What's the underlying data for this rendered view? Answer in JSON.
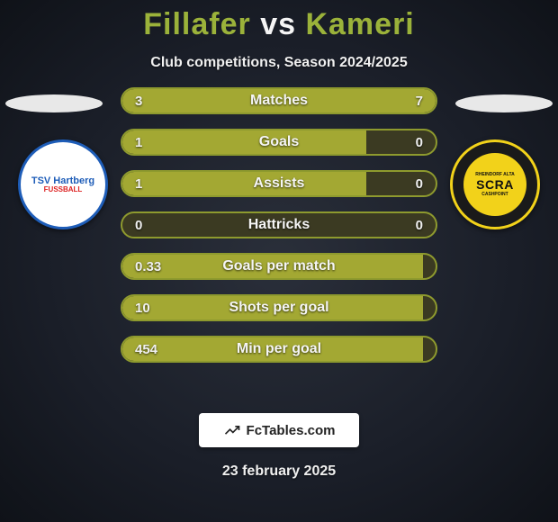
{
  "title": {
    "player1": "Fillafer",
    "vs": "vs",
    "player2": "Kameri"
  },
  "subtitle": "Club competitions, Season 2024/2025",
  "team_left": {
    "badge_main": "TSV Hartberg",
    "badge_sub": "FUSSBALL"
  },
  "team_right": {
    "badge_main": "SCRA",
    "badge_top": "RHEINDORF ALTA",
    "badge_sub": "CASHPOINT"
  },
  "rows": [
    {
      "label": "Matches",
      "left": "3",
      "right": "7",
      "left_pct": 30,
      "right_pct": 70
    },
    {
      "label": "Goals",
      "left": "1",
      "right": "0",
      "left_pct": 78,
      "right_pct": 0
    },
    {
      "label": "Assists",
      "left": "1",
      "right": "0",
      "left_pct": 78,
      "right_pct": 0
    },
    {
      "label": "Hattricks",
      "left": "0",
      "right": "0",
      "left_pct": 0,
      "right_pct": 0
    },
    {
      "label": "Goals per match",
      "left": "0.33",
      "right": "",
      "left_pct": 96,
      "right_pct": 0
    },
    {
      "label": "Shots per goal",
      "left": "10",
      "right": "",
      "left_pct": 96,
      "right_pct": 0
    },
    {
      "label": "Min per goal",
      "left": "454",
      "right": "",
      "left_pct": 96,
      "right_pct": 0
    }
  ],
  "colors": {
    "accent": "#a3a833",
    "bar_border": "#8e9a2e",
    "bar_bg": "#3b3a22",
    "text": "#f0f0f0",
    "title_accent": "#9bb23a"
  },
  "footer_brand": "FcTables.com",
  "date": "23 february 2025"
}
